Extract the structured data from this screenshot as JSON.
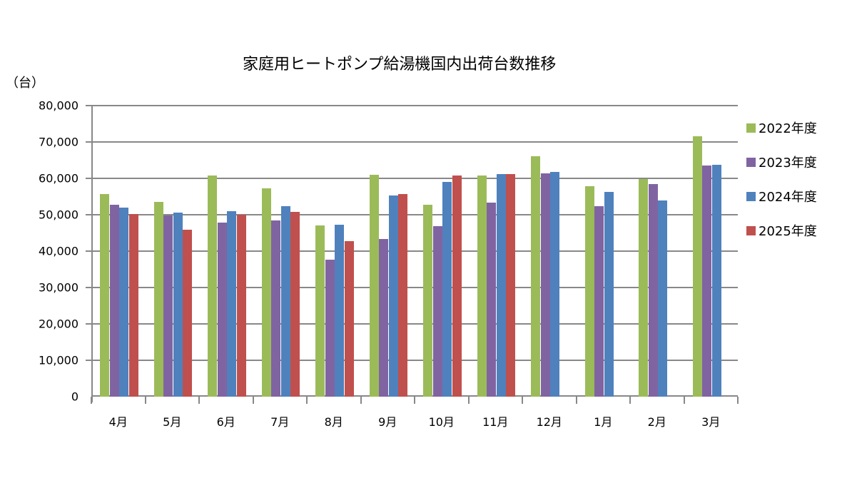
{
  "chart_data": {
    "type": "bar",
    "title": "家庭用ヒートポンプ給湯機国内出荷台数推移",
    "ylabel": "（台）",
    "xlabel": "",
    "ylim": [
      0,
      80000
    ],
    "yticks": [
      "0",
      "10,000",
      "20,000",
      "30,000",
      "40,000",
      "50,000",
      "60,000",
      "70,000",
      "80,000"
    ],
    "grid": true,
    "legend_position": "right",
    "categories": [
      "4月",
      "5月",
      "6月",
      "7月",
      "8月",
      "9月",
      "10月",
      "11月",
      "12月",
      "1月",
      "2月",
      "3月"
    ],
    "series": [
      {
        "name": "2022年度",
        "color": "#9BBB59",
        "values": [
          55700,
          53500,
          60800,
          57300,
          47000,
          60900,
          52800,
          60700,
          66000,
          57800,
          59900,
          71500
        ]
      },
      {
        "name": "2023年度",
        "color": "#8064A2",
        "values": [
          52700,
          49800,
          47800,
          48400,
          37700,
          43400,
          46800,
          53400,
          61300,
          52300,
          58500,
          63500
        ]
      },
      {
        "name": "2024年度",
        "color": "#4F81BD",
        "values": [
          52000,
          50600,
          51000,
          52400,
          47200,
          55200,
          59000,
          61100,
          61700,
          56200,
          54000,
          63700
        ]
      },
      {
        "name": "2025年度",
        "color": "#C0504D",
        "values": [
          50200,
          45900,
          50000,
          50800,
          42700,
          55600,
          60700,
          61100,
          null,
          null,
          null,
          null
        ]
      }
    ]
  }
}
